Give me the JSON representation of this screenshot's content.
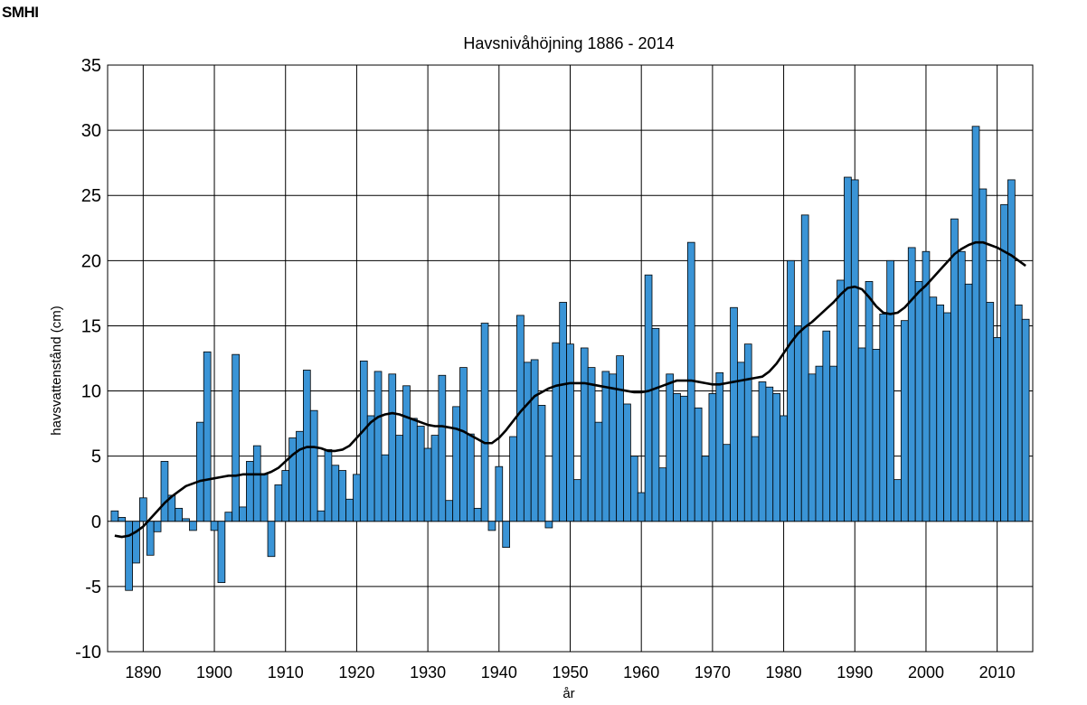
{
  "logo": {
    "text": "SMHI"
  },
  "chart_data": {
    "type": "bar",
    "title": "Havsnivåhöjning 1886 - 2014",
    "xlabel": "år",
    "ylabel": "havsvattenstånd (cm)",
    "xlim": [
      1885,
      2015
    ],
    "ylim": [
      -10,
      35
    ],
    "x_ticks": [
      1890,
      1900,
      1910,
      1920,
      1930,
      1940,
      1950,
      1960,
      1970,
      1980,
      1990,
      2000,
      2010
    ],
    "y_ticks": [
      -10,
      -5,
      0,
      5,
      10,
      15,
      20,
      25,
      30,
      35
    ],
    "grid": true,
    "bar_color": "#3a94d6",
    "bar_edge_color": "#000000",
    "line_color": "#000000",
    "series": [
      {
        "type": "bar",
        "x": [
          1886,
          1887,
          1888,
          1889,
          1890,
          1891,
          1892,
          1893,
          1894,
          1895,
          1896,
          1897,
          1898,
          1899,
          1900,
          1901,
          1902,
          1903,
          1904,
          1905,
          1906,
          1907,
          1908,
          1909,
          1910,
          1911,
          1912,
          1913,
          1914,
          1915,
          1916,
          1917,
          1918,
          1919,
          1920,
          1921,
          1922,
          1923,
          1924,
          1925,
          1926,
          1927,
          1928,
          1929,
          1930,
          1931,
          1932,
          1933,
          1934,
          1935,
          1936,
          1937,
          1938,
          1939,
          1940,
          1941,
          1942,
          1943,
          1944,
          1945,
          1946,
          1947,
          1948,
          1949,
          1950,
          1951,
          1952,
          1953,
          1954,
          1955,
          1956,
          1957,
          1958,
          1959,
          1960,
          1961,
          1962,
          1963,
          1964,
          1965,
          1966,
          1967,
          1968,
          1969,
          1970,
          1971,
          1972,
          1973,
          1974,
          1975,
          1976,
          1977,
          1978,
          1979,
          1980,
          1981,
          1982,
          1983,
          1984,
          1985,
          1986,
          1987,
          1988,
          1989,
          1990,
          1991,
          1992,
          1993,
          1994,
          1995,
          1996,
          1997,
          1998,
          1999,
          2000,
          2001,
          2002,
          2003,
          2004,
          2005,
          2006,
          2007,
          2008,
          2009,
          2010,
          2011,
          2012,
          2013,
          2014
        ],
        "values": [
          0.8,
          0.3,
          -5.3,
          -3.2,
          1.8,
          -2.6,
          -0.8,
          4.6,
          2.0,
          1.0,
          0.2,
          -0.7,
          7.6,
          13.0,
          -0.7,
          -4.7,
          0.7,
          12.8,
          1.1,
          4.6,
          5.8,
          3.6,
          -2.7,
          2.8,
          3.9,
          6.4,
          6.9,
          11.6,
          8.5,
          0.8,
          5.5,
          4.3,
          3.9,
          1.7,
          3.6,
          12.3,
          8.1,
          11.5,
          5.1,
          11.3,
          6.6,
          10.4,
          7.9,
          7.3,
          5.6,
          6.6,
          11.2,
          1.6,
          8.8,
          11.8,
          6.7,
          1.0,
          15.2,
          -0.7,
          4.2,
          -2.0,
          6.5,
          15.8,
          12.2,
          12.4,
          8.9,
          -0.5,
          13.7,
          16.8,
          13.6,
          3.2,
          13.3,
          11.8,
          7.6,
          11.5,
          11.3,
          12.7,
          9.0,
          5.0,
          2.2,
          18.9,
          14.8,
          4.1,
          11.3,
          9.8,
          9.6,
          21.4,
          8.7,
          5.0,
          9.8,
          11.4,
          5.9,
          16.4,
          12.2,
          13.6,
          6.5,
          10.7,
          10.3,
          9.8,
          8.1,
          20.0,
          15.0,
          23.5,
          11.3,
          11.9,
          14.6,
          11.9,
          18.5,
          26.4,
          26.2,
          13.3,
          18.4,
          13.2,
          15.9,
          20.0,
          3.2,
          15.4,
          21.0,
          18.4,
          20.7,
          17.2,
          16.6,
          16.0,
          23.2,
          20.7,
          18.2,
          30.3,
          25.5,
          16.8,
          14.1,
          24.3,
          26.2,
          16.6,
          15.5
        ]
      },
      {
        "type": "line",
        "x": [
          1886,
          1887,
          1888,
          1889,
          1890,
          1891,
          1892,
          1893,
          1894,
          1895,
          1896,
          1897,
          1898,
          1899,
          1900,
          1901,
          1902,
          1903,
          1904,
          1905,
          1906,
          1907,
          1908,
          1909,
          1910,
          1911,
          1912,
          1913,
          1914,
          1915,
          1916,
          1917,
          1918,
          1919,
          1920,
          1921,
          1922,
          1923,
          1924,
          1925,
          1926,
          1927,
          1928,
          1929,
          1930,
          1931,
          1932,
          1933,
          1934,
          1935,
          1936,
          1937,
          1938,
          1939,
          1940,
          1941,
          1942,
          1943,
          1944,
          1945,
          1946,
          1947,
          1948,
          1949,
          1950,
          1951,
          1952,
          1953,
          1954,
          1955,
          1956,
          1957,
          1958,
          1959,
          1960,
          1961,
          1962,
          1963,
          1964,
          1965,
          1966,
          1967,
          1968,
          1969,
          1970,
          1971,
          1972,
          1973,
          1974,
          1975,
          1976,
          1977,
          1978,
          1979,
          1980,
          1981,
          1982,
          1983,
          1984,
          1985,
          1986,
          1987,
          1988,
          1989,
          1990,
          1991,
          1992,
          1993,
          1994,
          1995,
          1996,
          1997,
          1998,
          1999,
          2000,
          2001,
          2002,
          2003,
          2004,
          2005,
          2006,
          2007,
          2008,
          2009,
          2010,
          2011,
          2012,
          2013,
          2014
        ],
        "values": [
          -1.1,
          -1.2,
          -1.1,
          -0.8,
          -0.4,
          0.2,
          0.8,
          1.4,
          1.9,
          2.3,
          2.7,
          2.9,
          3.1,
          3.2,
          3.3,
          3.4,
          3.5,
          3.5,
          3.6,
          3.6,
          3.6,
          3.6,
          3.8,
          4.1,
          4.6,
          5.1,
          5.5,
          5.7,
          5.7,
          5.6,
          5.4,
          5.4,
          5.5,
          5.8,
          6.4,
          7.0,
          7.6,
          8.0,
          8.2,
          8.3,
          8.2,
          8.0,
          7.8,
          7.6,
          7.4,
          7.3,
          7.3,
          7.2,
          7.1,
          6.9,
          6.6,
          6.3,
          6.0,
          6.0,
          6.4,
          7.0,
          7.7,
          8.4,
          9.0,
          9.6,
          9.9,
          10.2,
          10.4,
          10.5,
          10.6,
          10.6,
          10.6,
          10.5,
          10.4,
          10.3,
          10.2,
          10.1,
          10.0,
          9.9,
          9.9,
          10.0,
          10.2,
          10.4,
          10.6,
          10.8,
          10.8,
          10.8,
          10.7,
          10.6,
          10.5,
          10.5,
          10.6,
          10.7,
          10.8,
          10.9,
          11.0,
          11.1,
          11.5,
          12.1,
          12.9,
          13.7,
          14.4,
          14.9,
          15.3,
          15.8,
          16.3,
          16.8,
          17.4,
          17.9,
          18.0,
          17.8,
          17.2,
          16.5,
          16.0,
          15.9,
          16.0,
          16.4,
          17.0,
          17.6,
          18.1,
          18.7,
          19.3,
          19.9,
          20.5,
          20.9,
          21.2,
          21.4,
          21.4,
          21.2,
          21.0,
          20.7,
          20.4,
          20.0,
          19.6
        ]
      }
    ]
  }
}
